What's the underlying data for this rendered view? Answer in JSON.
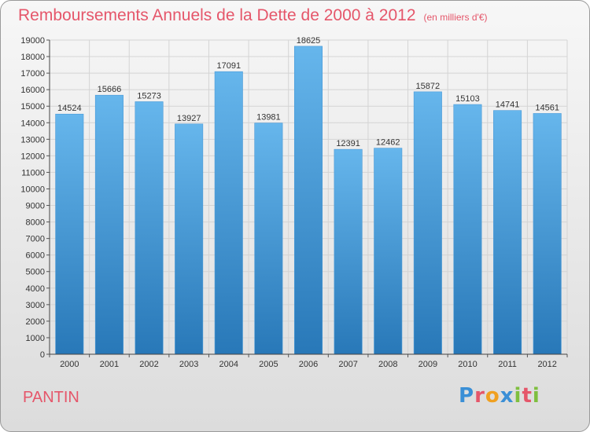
{
  "title": "Remboursements Annuels de la Dette de 2000 à 2012",
  "unit": "(en milliers d'€)",
  "city": "PANTIN",
  "logo": {
    "text": "Proxiti",
    "letters": [
      {
        "ch": "P",
        "color": "#3a8fd6"
      },
      {
        "ch": "r",
        "color": "#e5566a"
      },
      {
        "ch": "o",
        "color": "#f0a020"
      },
      {
        "ch": "x",
        "color": "#3a8fd6"
      },
      {
        "ch": "i",
        "color": "#7fbf3f"
      },
      {
        "ch": "t",
        "color": "#e5566a"
      },
      {
        "ch": "i",
        "color": "#7fbf3f"
      }
    ]
  },
  "colors": {
    "bar_top": "#66b6ec",
    "bar_bottom": "#2878b8",
    "title": "#e5566a"
  },
  "chart_data": {
    "type": "bar",
    "categories": [
      "2000",
      "2001",
      "2002",
      "2003",
      "2004",
      "2005",
      "2006",
      "2007",
      "2008",
      "2009",
      "2010",
      "2011",
      "2012"
    ],
    "values": [
      14524,
      15666,
      15273,
      13927,
      17091,
      13981,
      18625,
      12391,
      12462,
      15872,
      15103,
      14741,
      14561
    ],
    "ylim": [
      0,
      19000
    ],
    "ytick_step": 1000,
    "grid": true,
    "data_labels": true
  }
}
